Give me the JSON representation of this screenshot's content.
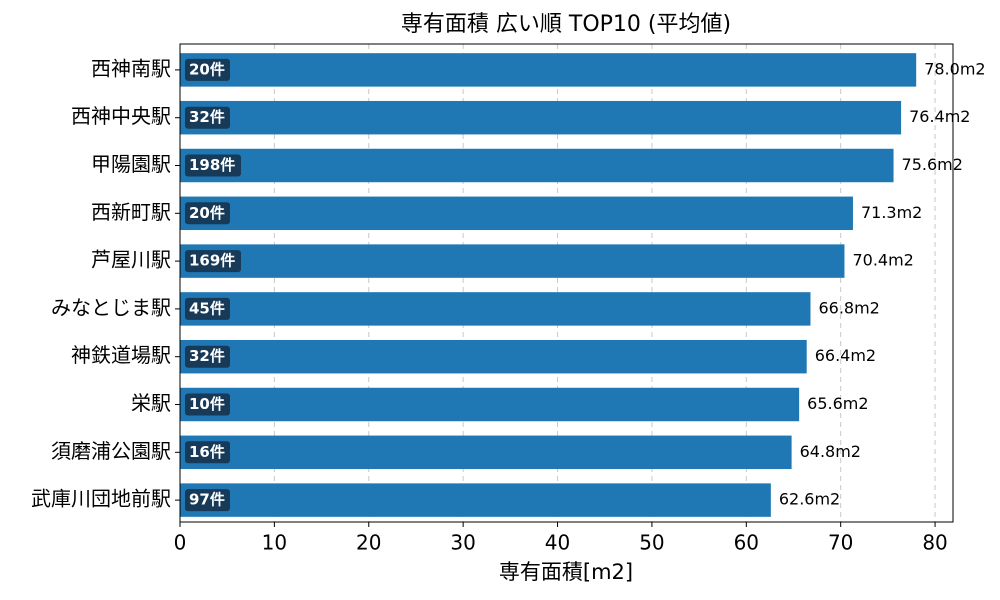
{
  "chart_data": {
    "type": "barh",
    "title": "専有面積 広い順 TOP10 (平均値)",
    "x_label": "専有面積[m2]",
    "categories": [
      "西神南駅",
      "西神中央駅",
      "甲陽園駅",
      "西新町駅",
      "芦屋川駅",
      "みなとじま駅",
      "神鉄道場駅",
      "栄駅",
      "須磨浦公園駅",
      "武庫川団地前駅"
    ],
    "values": [
      78.0,
      76.4,
      75.6,
      71.3,
      70.4,
      66.8,
      66.4,
      65.6,
      64.8,
      62.6
    ],
    "value_labels": [
      "78.0m2",
      "76.4m2",
      "75.6m2",
      "71.3m2",
      "70.4m2",
      "66.8m2",
      "66.4m2",
      "65.6m2",
      "64.8m2",
      "62.6m2"
    ],
    "annotations": [
      "20件",
      "32件",
      "198件",
      "20件",
      "169件",
      "45件",
      "32件",
      "10件",
      "16件",
      "97件"
    ],
    "color": "#1f77b4",
    "annotation_color": "#163a57",
    "xlim": [
      0,
      81.9
    ],
    "xticks": [
      0,
      10,
      20,
      30,
      40,
      50,
      60,
      70,
      80
    ],
    "grid": true
  }
}
